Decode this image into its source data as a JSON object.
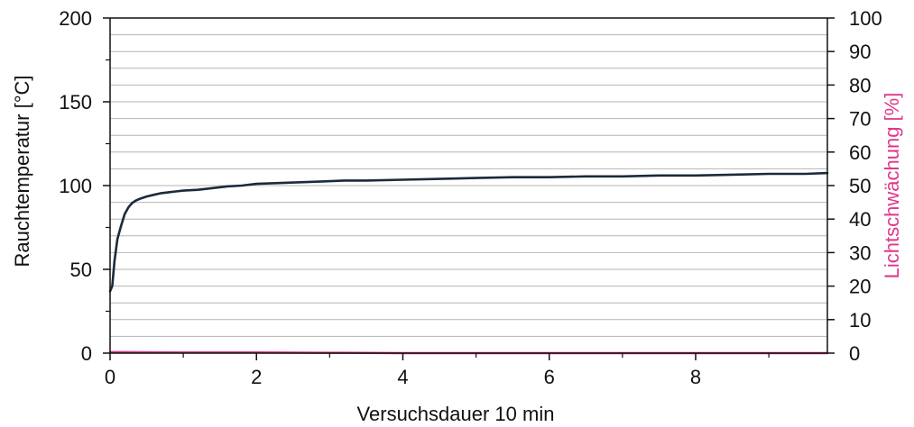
{
  "chart_data": {
    "type": "line",
    "xlabel": "Versuchsdauer 10 min",
    "ylabel_left": "Rauchtemperatur [°C]",
    "ylabel_right": "Lichtschwächung [%]",
    "xlim": [
      0,
      9.8
    ],
    "ylim_left": [
      0,
      200
    ],
    "ylim_right": [
      0,
      100
    ],
    "x_ticks": [
      0,
      2,
      4,
      6,
      8
    ],
    "y_ticks_left": [
      0,
      50,
      100,
      150,
      200
    ],
    "y_ticks_right": [
      0,
      10,
      20,
      30,
      40,
      50,
      60,
      70,
      80,
      90,
      100
    ],
    "grid": true,
    "colors": {
      "temperature": "#1b2a3c",
      "light": "#e0368a",
      "axis": "#111111"
    },
    "series": [
      {
        "axis": "left",
        "color": "#1b2a3c",
        "x": [
          0,
          0.03,
          0.06,
          0.1,
          0.15,
          0.2,
          0.25,
          0.3,
          0.35,
          0.4,
          0.5,
          0.6,
          0.7,
          0.8,
          0.9,
          1.0,
          1.2,
          1.4,
          1.6,
          1.8,
          2.0,
          2.3,
          2.6,
          2.9,
          3.2,
          3.5,
          4.0,
          4.5,
          5.0,
          5.5,
          6.0,
          6.5,
          7.0,
          7.5,
          8.0,
          8.5,
          9.0,
          9.5,
          9.8
        ],
        "values": [
          37,
          40,
          55,
          68,
          76,
          83,
          87,
          89.5,
          91,
          92,
          93.5,
          94.5,
          95.5,
          96,
          96.5,
          97,
          97.5,
          98.5,
          99.5,
          100,
          101,
          101.5,
          102,
          102.5,
          103,
          103,
          103.5,
          104,
          104.5,
          105,
          105,
          105.5,
          105.5,
          106,
          106,
          106.5,
          107,
          107,
          107.5
        ]
      },
      {
        "axis": "right",
        "color": "#e0368a",
        "x": [
          0,
          1,
          2,
          3,
          4,
          5,
          6,
          7,
          8,
          9,
          9.8
        ],
        "values": [
          0.3,
          0.2,
          0.2,
          0.1,
          0,
          0,
          0,
          0,
          0,
          0,
          0
        ]
      }
    ]
  }
}
